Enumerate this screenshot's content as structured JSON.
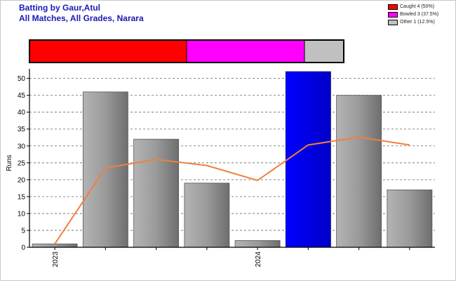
{
  "title_line1": "Batting by Gaur,Atul",
  "title_line2": "All Matches, All Grades, Narara",
  "dismissals": [
    {
      "label": "Caught 4 (50%)",
      "fraction": 0.5,
      "color": "#ff0000"
    },
    {
      "label": "Bowled 3 (37.5%)",
      "fraction": 0.375,
      "color": "#ff00ff"
    },
    {
      "label": "Other 1 (12.5%)",
      "fraction": 0.125,
      "color": "#c0c0c0"
    }
  ],
  "chart_data": {
    "type": "bar",
    "ylabel": "Runs",
    "ylim": [
      0,
      52
    ],
    "yticks": [
      0,
      5,
      10,
      15,
      20,
      25,
      30,
      35,
      40,
      45,
      50
    ],
    "grid": true,
    "x_tick_labels": [
      {
        "index": 0,
        "label": "2023"
      },
      {
        "index": 4,
        "label": "2024"
      }
    ],
    "values": [
      1,
      46,
      32,
      19,
      2,
      52,
      45,
      17
    ],
    "highlight_index": 5,
    "bar_color": "#808080",
    "highlight_color": "#0000e6",
    "line": {
      "name": "",
      "color": "#f08040",
      "values": [
        1,
        23.5,
        26,
        24.2,
        19.8,
        30.3,
        32.6,
        30.3
      ]
    }
  }
}
